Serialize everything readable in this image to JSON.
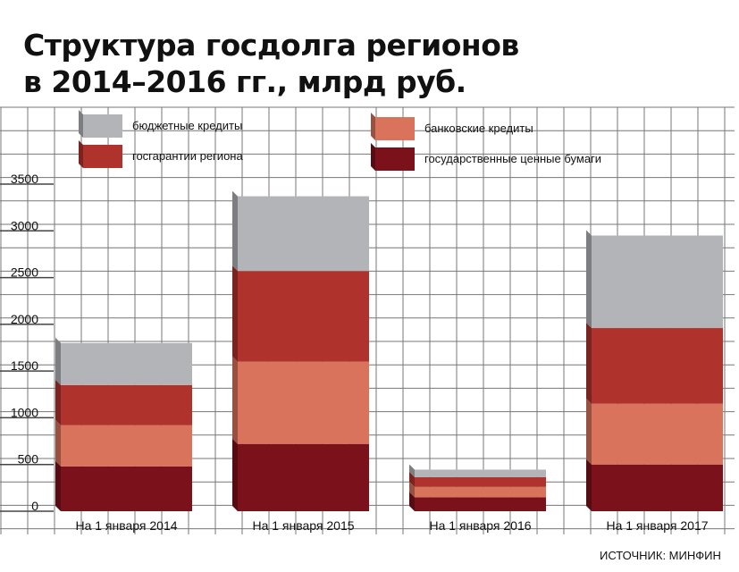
{
  "title": {
    "line1": "Структура госдолга регионов",
    "line2": "в 2014–2016 гг., млрд руб."
  },
  "source": "ИСТОЧНИК: МИНФИН",
  "colors": {
    "background": "#ffffff",
    "grid": "#777777",
    "budget_loans": "#b3b4b8",
    "regional_guarantees": "#b0322d",
    "bank_loans": "#d9735c",
    "securities": "#7b111a"
  },
  "chart_data": {
    "type": "bar",
    "stacked": true,
    "title": "Структура госдолга регионов в 2014–2016 гг., млрд руб.",
    "categories": [
      "На 1 января 2014",
      "На 1 января 2015",
      "На 1 января 2016",
      "На 1 января 2017"
    ],
    "yticks": [
      "0",
      "500",
      "1000",
      "1500",
      "2000",
      "2500",
      "3000",
      "3500"
    ],
    "ylim": [
      0,
      3500
    ],
    "grid": true,
    "legend_position": "top",
    "series": [
      {
        "name": "государственные ценные бумаги",
        "color": "#7b111a",
        "values": [
          480,
          720,
          150,
          500
        ]
      },
      {
        "name": "банковские кредиты",
        "color": "#d9735c",
        "values": [
          440,
          880,
          110,
          650
        ]
      },
      {
        "name": "госгарантии региона",
        "color": "#b0322d",
        "values": [
          430,
          970,
          105,
          810
        ]
      },
      {
        "name": "бюджетные кредиты",
        "color": "#b3b4b8",
        "values": [
          450,
          800,
          80,
          990
        ]
      }
    ]
  }
}
